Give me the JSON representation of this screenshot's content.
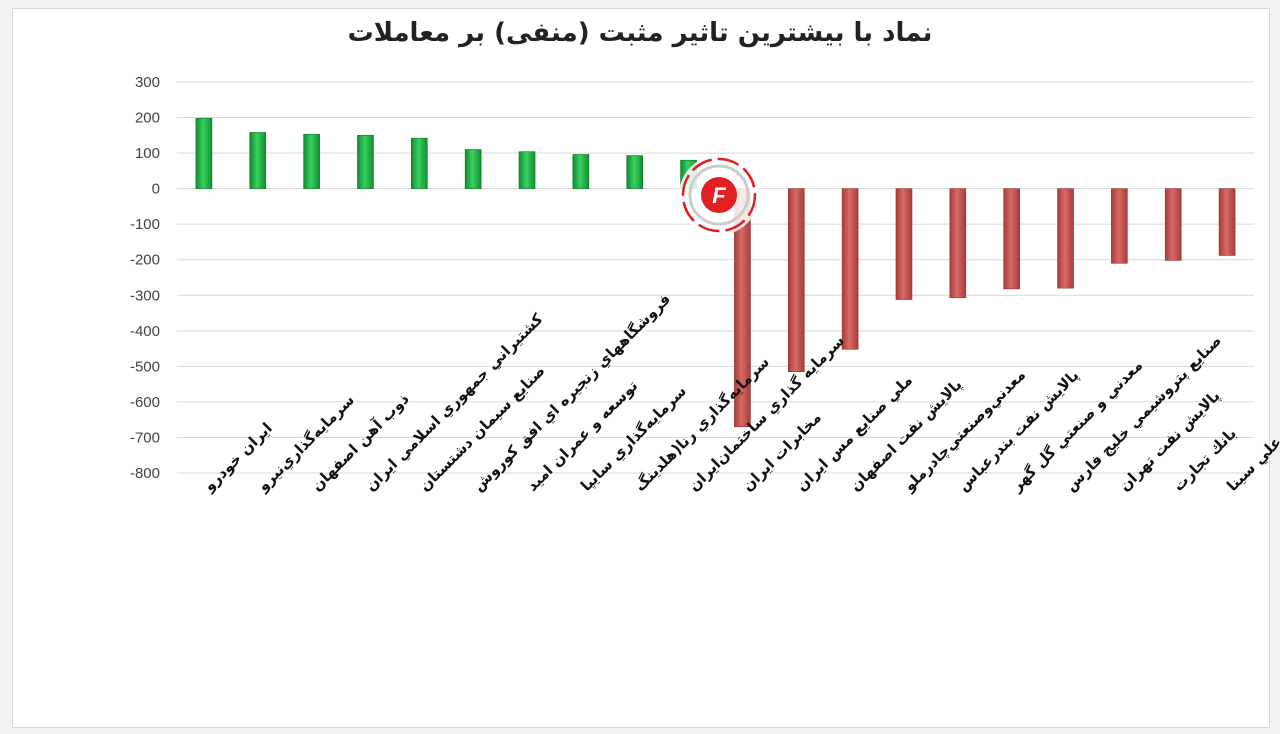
{
  "chart_data": {
    "type": "bar",
    "title": "نماد با بیشترین تاثیر مثبت (منفی) بر معاملات",
    "xlabel": "",
    "ylabel": "",
    "ylim": [
      -800,
      300
    ],
    "yticks": [
      300,
      200,
      100,
      0,
      -100,
      -200,
      -300,
      -400,
      -500,
      -600,
      -700,
      -800
    ],
    "grid": true,
    "categories": [
      "ايران خودرو",
      "سرمايه‌گذاري‌نيرو",
      "ذوب آهن اصفهان",
      "كشتيراني جمهوري اسلامي ايران",
      "صنايع سيمان دشتستان",
      "فروشگاههاي زنجيره اي افق كوروش",
      "توسعه و عمران اميد",
      "سرمايه‌گذاري سايپا",
      "سرمايه‌گذاري رنا(هلدينگ",
      "سرمايه گذاري ساختمان‌ايران",
      "مخابرات ايران",
      "ملي صنايع مس ايران",
      "پالايش نفت اصفهان",
      "معدني‌وصنعتي‌چادرملو",
      "پالايش نفت بندرعباس",
      "معدني و صنعتي گل گهر",
      "صنايع پتروشيمي خليج فارس",
      "پالايش نفت تهران",
      "بانك تجارت",
      "پتروشيمي بوعلي سينا"
    ],
    "values": [
      198,
      158,
      153,
      150,
      142,
      110,
      104,
      96,
      93,
      80,
      -670,
      -515,
      -452,
      -312,
      -307,
      -282,
      -280,
      -210,
      -202,
      -188
    ],
    "colors": {
      "positive": "#1fae42",
      "negative": "#c0504d",
      "grid": "#d9d9d9"
    }
  },
  "logo": {
    "letter": "F",
    "color": "#e02020"
  }
}
